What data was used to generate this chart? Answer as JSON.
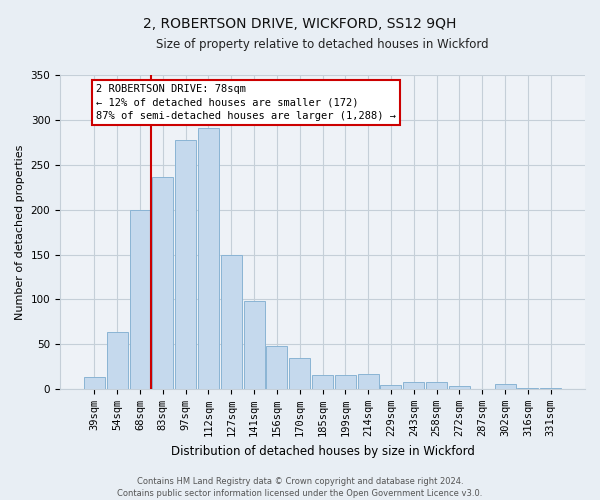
{
  "title": "2, ROBERTSON DRIVE, WICKFORD, SS12 9QH",
  "subtitle": "Size of property relative to detached houses in Wickford",
  "xlabel": "Distribution of detached houses by size in Wickford",
  "ylabel": "Number of detached properties",
  "categories": [
    "39sqm",
    "54sqm",
    "68sqm",
    "83sqm",
    "97sqm",
    "112sqm",
    "127sqm",
    "141sqm",
    "156sqm",
    "170sqm",
    "185sqm",
    "199sqm",
    "214sqm",
    "229sqm",
    "243sqm",
    "258sqm",
    "272sqm",
    "287sqm",
    "302sqm",
    "316sqm",
    "331sqm"
  ],
  "values": [
    13,
    63,
    200,
    237,
    278,
    291,
    150,
    98,
    48,
    35,
    16,
    16,
    17,
    4,
    8,
    8,
    3,
    0,
    5,
    1,
    1
  ],
  "bar_color": "#c5d9ed",
  "bar_edge_color": "#8ab4d4",
  "vline_x": 2.5,
  "vline_color": "#cc0000",
  "annotation_text": "2 ROBERTSON DRIVE: 78sqm\n← 12% of detached houses are smaller (172)\n87% of semi-detached houses are larger (1,288) →",
  "annotation_box_color": "#ffffff",
  "annotation_box_edge_color": "#cc0000",
  "ylim": [
    0,
    350
  ],
  "yticks": [
    0,
    50,
    100,
    150,
    200,
    250,
    300,
    350
  ],
  "footer_text": "Contains HM Land Registry data © Crown copyright and database right 2024.\nContains public sector information licensed under the Open Government Licence v3.0.",
  "bg_color": "#e8eef4",
  "plot_bg_color": "#eef2f7",
  "grid_color": "#c5cfd8",
  "title_fontsize": 10,
  "subtitle_fontsize": 8.5,
  "ylabel_fontsize": 8,
  "xlabel_fontsize": 8.5,
  "tick_fontsize": 7.5,
  "annot_fontsize": 7.5,
  "footer_fontsize": 6
}
